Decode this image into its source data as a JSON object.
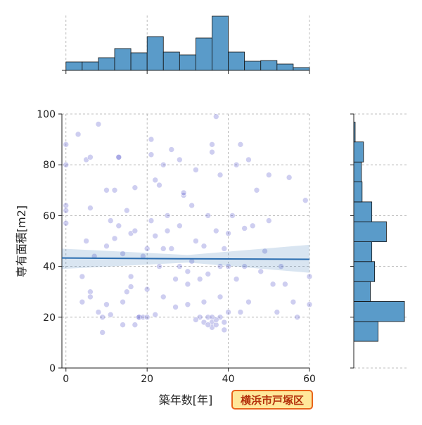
{
  "chart_data": [
    {
      "type": "scatter",
      "xlabel": "築年数[年]",
      "ylabel": "専有面積[m2]",
      "annotation": "横浜市戸塚区",
      "xlim": [
        -1,
        60
      ],
      "ylim": [
        0,
        100
      ],
      "xticks": [
        0,
        20,
        40,
        60
      ],
      "yticks": [
        0,
        20,
        40,
        60,
        80,
        100
      ],
      "grid": true,
      "color": "#3b3bc4",
      "x": [
        0,
        0,
        0,
        0,
        0,
        3,
        4,
        4,
        5,
        6,
        6,
        5,
        6,
        6,
        7,
        8,
        8,
        9,
        9,
        10,
        10,
        10,
        11,
        11,
        12,
        12,
        13,
        13,
        13,
        14,
        14,
        14,
        15,
        15,
        16,
        16,
        17,
        17,
        18,
        18,
        19,
        19,
        20,
        20,
        20,
        21,
        21,
        21,
        22,
        22,
        22,
        23,
        23,
        24,
        24,
        25,
        25,
        26,
        26,
        27,
        27,
        28,
        28,
        29,
        29,
        30,
        30,
        31,
        31,
        32,
        32,
        33,
        33,
        34,
        34,
        35,
        35,
        35,
        36,
        36,
        36,
        36,
        37,
        37,
        37,
        38,
        38,
        38,
        39,
        39,
        40,
        40,
        40,
        41,
        42,
        42,
        43,
        43,
        44,
        44,
        45,
        45,
        46,
        47,
        48,
        49,
        50,
        50,
        51,
        52,
        53,
        54,
        55,
        56,
        57,
        59,
        60,
        60,
        28,
        30,
        34,
        38,
        16,
        24,
        17,
        32,
        35,
        39,
        37,
        36
      ],
      "y": [
        88,
        80,
        64,
        62,
        57,
        92,
        26,
        36,
        82,
        83,
        63,
        50,
        30,
        28,
        44,
        96,
        22,
        20,
        14,
        70,
        48,
        25,
        21,
        58,
        70,
        51,
        83,
        83,
        56,
        45,
        26,
        17,
        30,
        62,
        32,
        53,
        71,
        17,
        20,
        20,
        20,
        44,
        47,
        20,
        31,
        90,
        84,
        58,
        74,
        21,
        52,
        72,
        40,
        80,
        28,
        60,
        54,
        86,
        47,
        24,
        35,
        56,
        82,
        68,
        69,
        38,
        25,
        64,
        42,
        78,
        50,
        20,
        35,
        48,
        18,
        20,
        60,
        37,
        88,
        85,
        18,
        16,
        17,
        99,
        54,
        76,
        40,
        20,
        15,
        47,
        40,
        22,
        53,
        60,
        35,
        80,
        88,
        22,
        55,
        40,
        82,
        26,
        56,
        70,
        38,
        46,
        76,
        58,
        33,
        22,
        40,
        33,
        75,
        26,
        20,
        66,
        36,
        25,
        40,
        33,
        26,
        28,
        36,
        47,
        54,
        19,
        17,
        18,
        19,
        20
      ],
      "regression": {
        "color": "#2a6db0",
        "x": [
          -1,
          30,
          60
        ],
        "y": [
          43.3,
          43,
          42.8
        ],
        "ci_low": [
          39,
          41.5,
          37.5
        ],
        "ci_high": [
          47,
          44.5,
          48.5
        ]
      }
    },
    {
      "type": "histogram",
      "orientation": "vertical",
      "color": "#5a9bc9",
      "bins": [
        0,
        4,
        8,
        12,
        16,
        20,
        24,
        28,
        32,
        36,
        40,
        44,
        48,
        52,
        56,
        60
      ],
      "values": [
        12,
        12,
        18,
        31,
        25,
        48,
        26,
        22,
        46,
        77,
        26,
        13,
        14,
        9,
        4
      ],
      "xlim": [
        -1,
        60
      ],
      "ylim": [
        0,
        78
      ],
      "xticks": [
        0,
        20,
        40,
        60
      ],
      "grid": true
    },
    {
      "type": "histogram",
      "orientation": "horizontal",
      "color": "#5a9bc9",
      "bins": [
        10.5,
        18.3,
        26.2,
        34,
        41.9,
        49.7,
        57.6,
        65.4,
        73.3,
        81.1,
        89,
        96.8
      ],
      "values": [
        35,
        73,
        24,
        30,
        26,
        47,
        26,
        12,
        11,
        14,
        2
      ],
      "ylim": [
        0,
        100
      ],
      "xlim": [
        0,
        78
      ],
      "yticks": [
        0,
        20,
        40,
        60,
        80,
        100
      ],
      "grid": true
    }
  ]
}
